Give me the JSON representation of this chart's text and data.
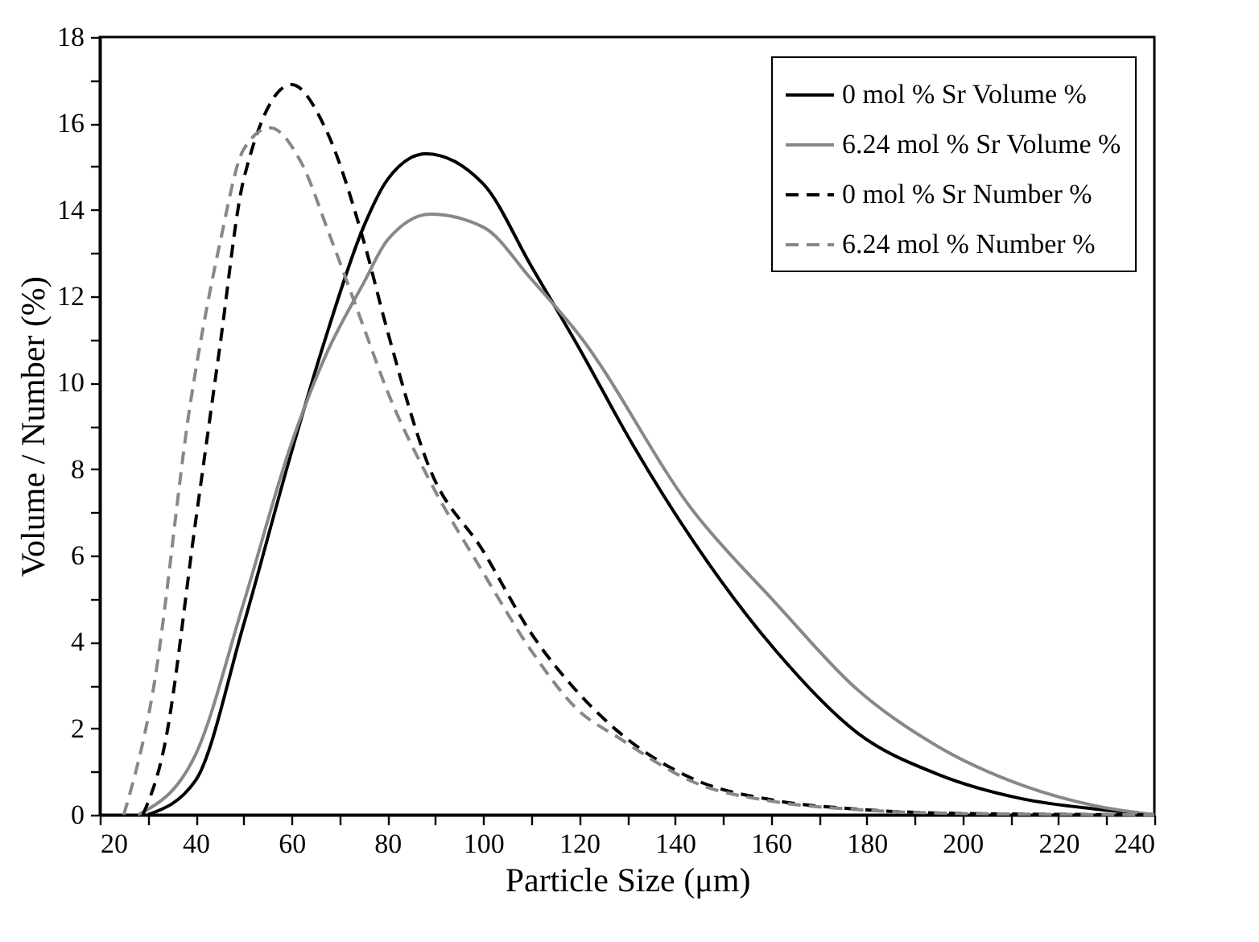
{
  "chart_data": {
    "type": "line",
    "xlabel": "Particle Size (μm)",
    "ylabel": "Volume / Number (%)",
    "xlim": [
      20,
      240
    ],
    "ylim": [
      0,
      18
    ],
    "xticks": [
      20,
      {
        "value": 30,
        "label": null
      },
      40,
      {
        "value": 50,
        "label": null
      },
      60,
      {
        "value": 70,
        "label": null
      },
      80,
      {
        "value": 90,
        "label": null
      },
      100,
      {
        "value": 110,
        "label": null
      },
      120,
      {
        "value": 130,
        "label": null
      },
      140,
      {
        "value": 150,
        "label": null
      },
      160,
      {
        "value": 170,
        "label": null
      },
      180,
      {
        "value": 190,
        "label": null
      },
      200,
      {
        "value": 210,
        "label": null
      },
      220,
      {
        "value": 230,
        "label": null
      },
      240
    ],
    "yticks": [
      0,
      {
        "value": 1,
        "label": null
      },
      2,
      {
        "value": 3,
        "label": null
      },
      4,
      {
        "value": 5,
        "label": null
      },
      6,
      {
        "value": 7,
        "label": null
      },
      8,
      {
        "value": 9,
        "label": null
      },
      10,
      {
        "value": 11,
        "label": null
      },
      12,
      {
        "value": 13,
        "label": null
      },
      14,
      {
        "value": 15,
        "label": null
      },
      16,
      {
        "value": 17,
        "label": null
      },
      18
    ],
    "grid": false,
    "legend": "top right",
    "marker": "none",
    "series": [
      {
        "name": "0 mol % Sr Volume %",
        "color": "#000000",
        "line_style": "solid",
        "x": [
          30,
          40,
          50,
          60,
          67,
          75,
          80,
          88,
          100,
          110,
          120,
          131,
          144,
          161,
          178,
          195,
          212,
          228,
          240
        ],
        "values": [
          0,
          0.8,
          4.4,
          8.4,
          11,
          13.6,
          14.7,
          15.3,
          14.6,
          12.7,
          10.8,
          8.6,
          6.3,
          3.8,
          1.9,
          0.93,
          0.38,
          0.13,
          0
        ]
      },
      {
        "name": "6.24 mol % Sr Volume %",
        "color": "#888888",
        "line_style": "solid",
        "x": [
          28,
          40,
          50,
          60,
          67,
          75,
          80,
          89,
          100,
          110,
          120,
          144,
          161,
          178,
          195,
          212,
          228,
          240
        ],
        "values": [
          0,
          1.4,
          4.9,
          8.6,
          10.6,
          12.3,
          13.3,
          13.9,
          13.6,
          12.4,
          11.1,
          7,
          4.9,
          2.9,
          1.57,
          0.7,
          0.2,
          0
        ]
      },
      {
        "name": "0 mol % Sr Number %",
        "color": "#000000",
        "line_style": "dashed",
        "x": [
          29,
          33.5,
          40,
          45,
          50,
          60,
          67,
          75,
          80,
          88.5,
          100,
          110,
          120,
          128,
          144,
          161,
          178,
          200,
          240
        ],
        "values": [
          0,
          1.6,
          6.8,
          10.8,
          14.7,
          16.9,
          15.9,
          13.3,
          11.2,
          8.1,
          6.1,
          4.2,
          2.8,
          1.94,
          0.82,
          0.33,
          0.13,
          0.03,
          0
        ]
      },
      {
        "name": "6.24 mol % Number %",
        "color": "#888888",
        "line_style": "dashed",
        "x": [
          25,
          31,
          39,
          45,
          50,
          55.5,
          62,
          68,
          75,
          80,
          88.5,
          100,
          110,
          120,
          128,
          144,
          161,
          178,
          200,
          240
        ],
        "values": [
          0,
          2.8,
          9.6,
          13.2,
          15.4,
          15.9,
          15.1,
          13.4,
          11.3,
          9.8,
          7.8,
          5.6,
          3.8,
          2.4,
          1.8,
          0.75,
          0.3,
          0.12,
          0.03,
          0
        ]
      }
    ]
  }
}
